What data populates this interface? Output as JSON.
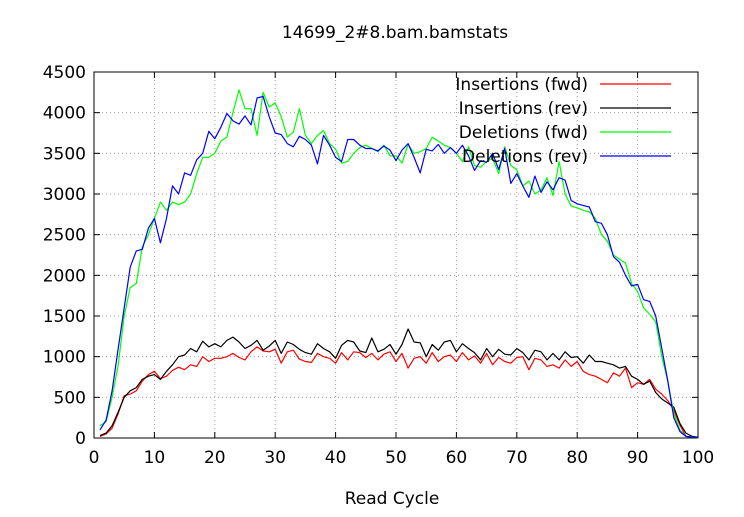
{
  "chart_data": {
    "type": "line",
    "title": "14699_2#8.bam.bamstats",
    "xlabel": "Read Cycle",
    "ylabel": "",
    "xlim": [
      0,
      100
    ],
    "ylim": [
      0,
      4500
    ],
    "x_ticks": [
      "0",
      "10",
      "20",
      "30",
      "40",
      "50",
      "60",
      "70",
      "80",
      "90",
      "100"
    ],
    "y_ticks": [
      "0",
      "500",
      "1000",
      "1500",
      "2000",
      "2500",
      "3000",
      "3500",
      "4000",
      "4500"
    ],
    "grid": true,
    "legend_position": "top-right",
    "x": [
      1,
      2,
      3,
      4,
      5,
      6,
      7,
      8,
      9,
      10,
      11,
      12,
      13,
      14,
      15,
      16,
      17,
      18,
      19,
      20,
      21,
      22,
      23,
      24,
      25,
      26,
      27,
      28,
      29,
      30,
      31,
      32,
      33,
      34,
      35,
      36,
      37,
      38,
      39,
      40,
      41,
      42,
      43,
      44,
      45,
      46,
      47,
      48,
      49,
      50,
      51,
      52,
      53,
      54,
      55,
      56,
      57,
      58,
      59,
      60,
      61,
      62,
      63,
      64,
      65,
      66,
      67,
      68,
      69,
      70,
      71,
      72,
      73,
      74,
      75,
      76,
      77,
      78,
      79,
      80,
      81,
      82,
      83,
      84,
      85,
      86,
      87,
      88,
      89,
      90,
      91,
      92,
      93,
      94,
      95,
      96,
      97,
      98,
      99,
      100
    ],
    "series": [
      {
        "name": "Insertions (fwd)",
        "color": "#ff0000",
        "values": [
          20,
          50,
          120,
          300,
          520,
          540,
          580,
          700,
          780,
          820,
          730,
          760,
          830,
          870,
          840,
          900,
          880,
          1000,
          940,
          980,
          980,
          1000,
          1040,
          990,
          960,
          1060,
          1120,
          1070,
          1060,
          1090,
          920,
          1060,
          1080,
          970,
          940,
          930,
          1040,
          1000,
          980,
          920,
          1050,
          960,
          1060,
          1050,
          990,
          1040,
          960,
          1030,
          1060,
          940,
          1040,
          860,
          980,
          1000,
          920,
          1050,
          940,
          1000,
          1020,
          940,
          1050,
          960,
          1010,
          920,
          1040,
          900,
          990,
          940,
          920,
          990,
          1000,
          840,
          980,
          960,
          880,
          900,
          860,
          960,
          880,
          940,
          820,
          780,
          760,
          720,
          680,
          800,
          760,
          860,
          620,
          680,
          660,
          720,
          600,
          540,
          460,
          340,
          160,
          20,
          10,
          5
        ]
      },
      {
        "name": "Insertions (rev)",
        "color": "#000000",
        "values": [
          30,
          60,
          150,
          320,
          500,
          580,
          620,
          720,
          760,
          780,
          720,
          820,
          900,
          1000,
          1020,
          1100,
          1060,
          1190,
          1120,
          1160,
          1120,
          1200,
          1240,
          1180,
          1100,
          1140,
          1200,
          1080,
          1130,
          1200,
          1040,
          1180,
          1150,
          1090,
          1050,
          1030,
          1160,
          1100,
          1060,
          980,
          1140,
          1200,
          1180,
          1070,
          1050,
          1230,
          1060,
          1090,
          1150,
          1030,
          1150,
          1340,
          1180,
          1170,
          1000,
          1150,
          1080,
          1180,
          1200,
          1060,
          1160,
          1100,
          1050,
          960,
          1100,
          1000,
          1090,
          1030,
          1020,
          1100,
          1050,
          960,
          1080,
          1060,
          960,
          1040,
          960,
          1060,
          990,
          1000,
          920,
          1020,
          940,
          940,
          920,
          900,
          860,
          880,
          760,
          720,
          660,
          700,
          560,
          480,
          430,
          380,
          180,
          60,
          20,
          10
        ]
      },
      {
        "name": "Deletions (fwd)",
        "color": "#00ff00",
        "values": [
          150,
          200,
          500,
          900,
          1500,
          1850,
          1900,
          2350,
          2500,
          2700,
          2900,
          2800,
          2900,
          2870,
          2900,
          3000,
          3250,
          3450,
          3450,
          3500,
          3650,
          3700,
          4000,
          4280,
          4050,
          4050,
          3720,
          4250,
          4070,
          4120,
          3950,
          3700,
          3760,
          4050,
          3720,
          3620,
          3720,
          3780,
          3620,
          3550,
          3380,
          3400,
          3500,
          3570,
          3600,
          3560,
          3520,
          3600,
          3470,
          3470,
          3380,
          3610,
          3500,
          3520,
          3560,
          3700,
          3650,
          3600,
          3570,
          3500,
          3400,
          3580,
          3350,
          3330,
          3400,
          3440,
          3250,
          3580,
          3350,
          3300,
          3100,
          3160,
          3000,
          3050,
          3200,
          2980,
          3400,
          3000,
          2850,
          2830,
          2800,
          2780,
          2700,
          2500,
          2420,
          2250,
          2200,
          2150,
          1900,
          1800,
          1600,
          1520,
          1430,
          1000,
          700,
          300,
          100,
          20,
          10,
          5
        ]
      },
      {
        "name": "Deletions (rev)",
        "color": "#0000ff",
        "values": [
          100,
          220,
          580,
          1100,
          1600,
          2100,
          2300,
          2320,
          2580,
          2700,
          2400,
          2700,
          3100,
          3000,
          3260,
          3230,
          3420,
          3500,
          3770,
          3680,
          3820,
          3990,
          3900,
          3860,
          3960,
          3850,
          4180,
          4200,
          3950,
          3750,
          3730,
          3620,
          3580,
          3710,
          3670,
          3600,
          3370,
          3720,
          3600,
          3450,
          3400,
          3670,
          3670,
          3600,
          3560,
          3560,
          3530,
          3590,
          3540,
          3410,
          3540,
          3620,
          3450,
          3260,
          3550,
          3530,
          3610,
          3500,
          3570,
          3500,
          3600,
          3470,
          3290,
          3410,
          3390,
          3500,
          3300,
          3560,
          3130,
          3250,
          3100,
          2960,
          3220,
          3020,
          3150,
          3050,
          3200,
          3170,
          2920,
          2880,
          2860,
          2840,
          2660,
          2640,
          2500,
          2230,
          2160,
          2000,
          1870,
          1890,
          1700,
          1680,
          1500,
          1100,
          700,
          250,
          80,
          20,
          10,
          5
        ]
      }
    ]
  }
}
